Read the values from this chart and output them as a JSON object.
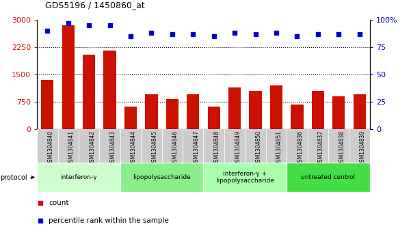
{
  "title": "GDS5196 / 1450860_at",
  "samples": [
    "GSM1304840",
    "GSM1304841",
    "GSM1304842",
    "GSM1304843",
    "GSM1304844",
    "GSM1304845",
    "GSM1304846",
    "GSM1304847",
    "GSM1304848",
    "GSM1304849",
    "GSM1304850",
    "GSM1304851",
    "GSM1304836",
    "GSM1304837",
    "GSM1304838",
    "GSM1304839"
  ],
  "counts": [
    1350,
    2850,
    2050,
    2150,
    620,
    950,
    820,
    950,
    620,
    1150,
    1050,
    1200,
    680,
    1050,
    900,
    950
  ],
  "percentile_ranks": [
    90,
    97,
    95,
    95,
    85,
    88,
    87,
    87,
    85,
    88,
    87,
    88,
    85,
    87,
    87,
    87
  ],
  "bar_color": "#cc1100",
  "dot_color": "#0000cc",
  "ylim_left": [
    0,
    3000
  ],
  "ylim_right": [
    0,
    100
  ],
  "yticks_left": [
    0,
    750,
    1500,
    2250,
    3000
  ],
  "yticks_right": [
    0,
    25,
    50,
    75,
    100
  ],
  "yticklabels_right": [
    "0",
    "25",
    "50",
    "75",
    "100%"
  ],
  "grid_values": [
    750,
    1500,
    2250
  ],
  "protocols": [
    {
      "label": "interferon-γ",
      "start": 0,
      "end": 4,
      "color": "#ccffcc"
    },
    {
      "label": "lipopolysaccharide",
      "start": 4,
      "end": 8,
      "color": "#88ee88"
    },
    {
      "label": "interferon-γ +\nlipopolysaccharide",
      "start": 8,
      "end": 12,
      "color": "#aaffaa"
    },
    {
      "label": "untreated control",
      "start": 12,
      "end": 16,
      "color": "#44dd44"
    }
  ],
  "legend_count_label": "count",
  "legend_percentile_label": "percentile rank within the sample",
  "protocol_label": "protocol",
  "background_color": "#ffffff",
  "tick_area_color": "#cccccc",
  "bar_width": 0.6
}
